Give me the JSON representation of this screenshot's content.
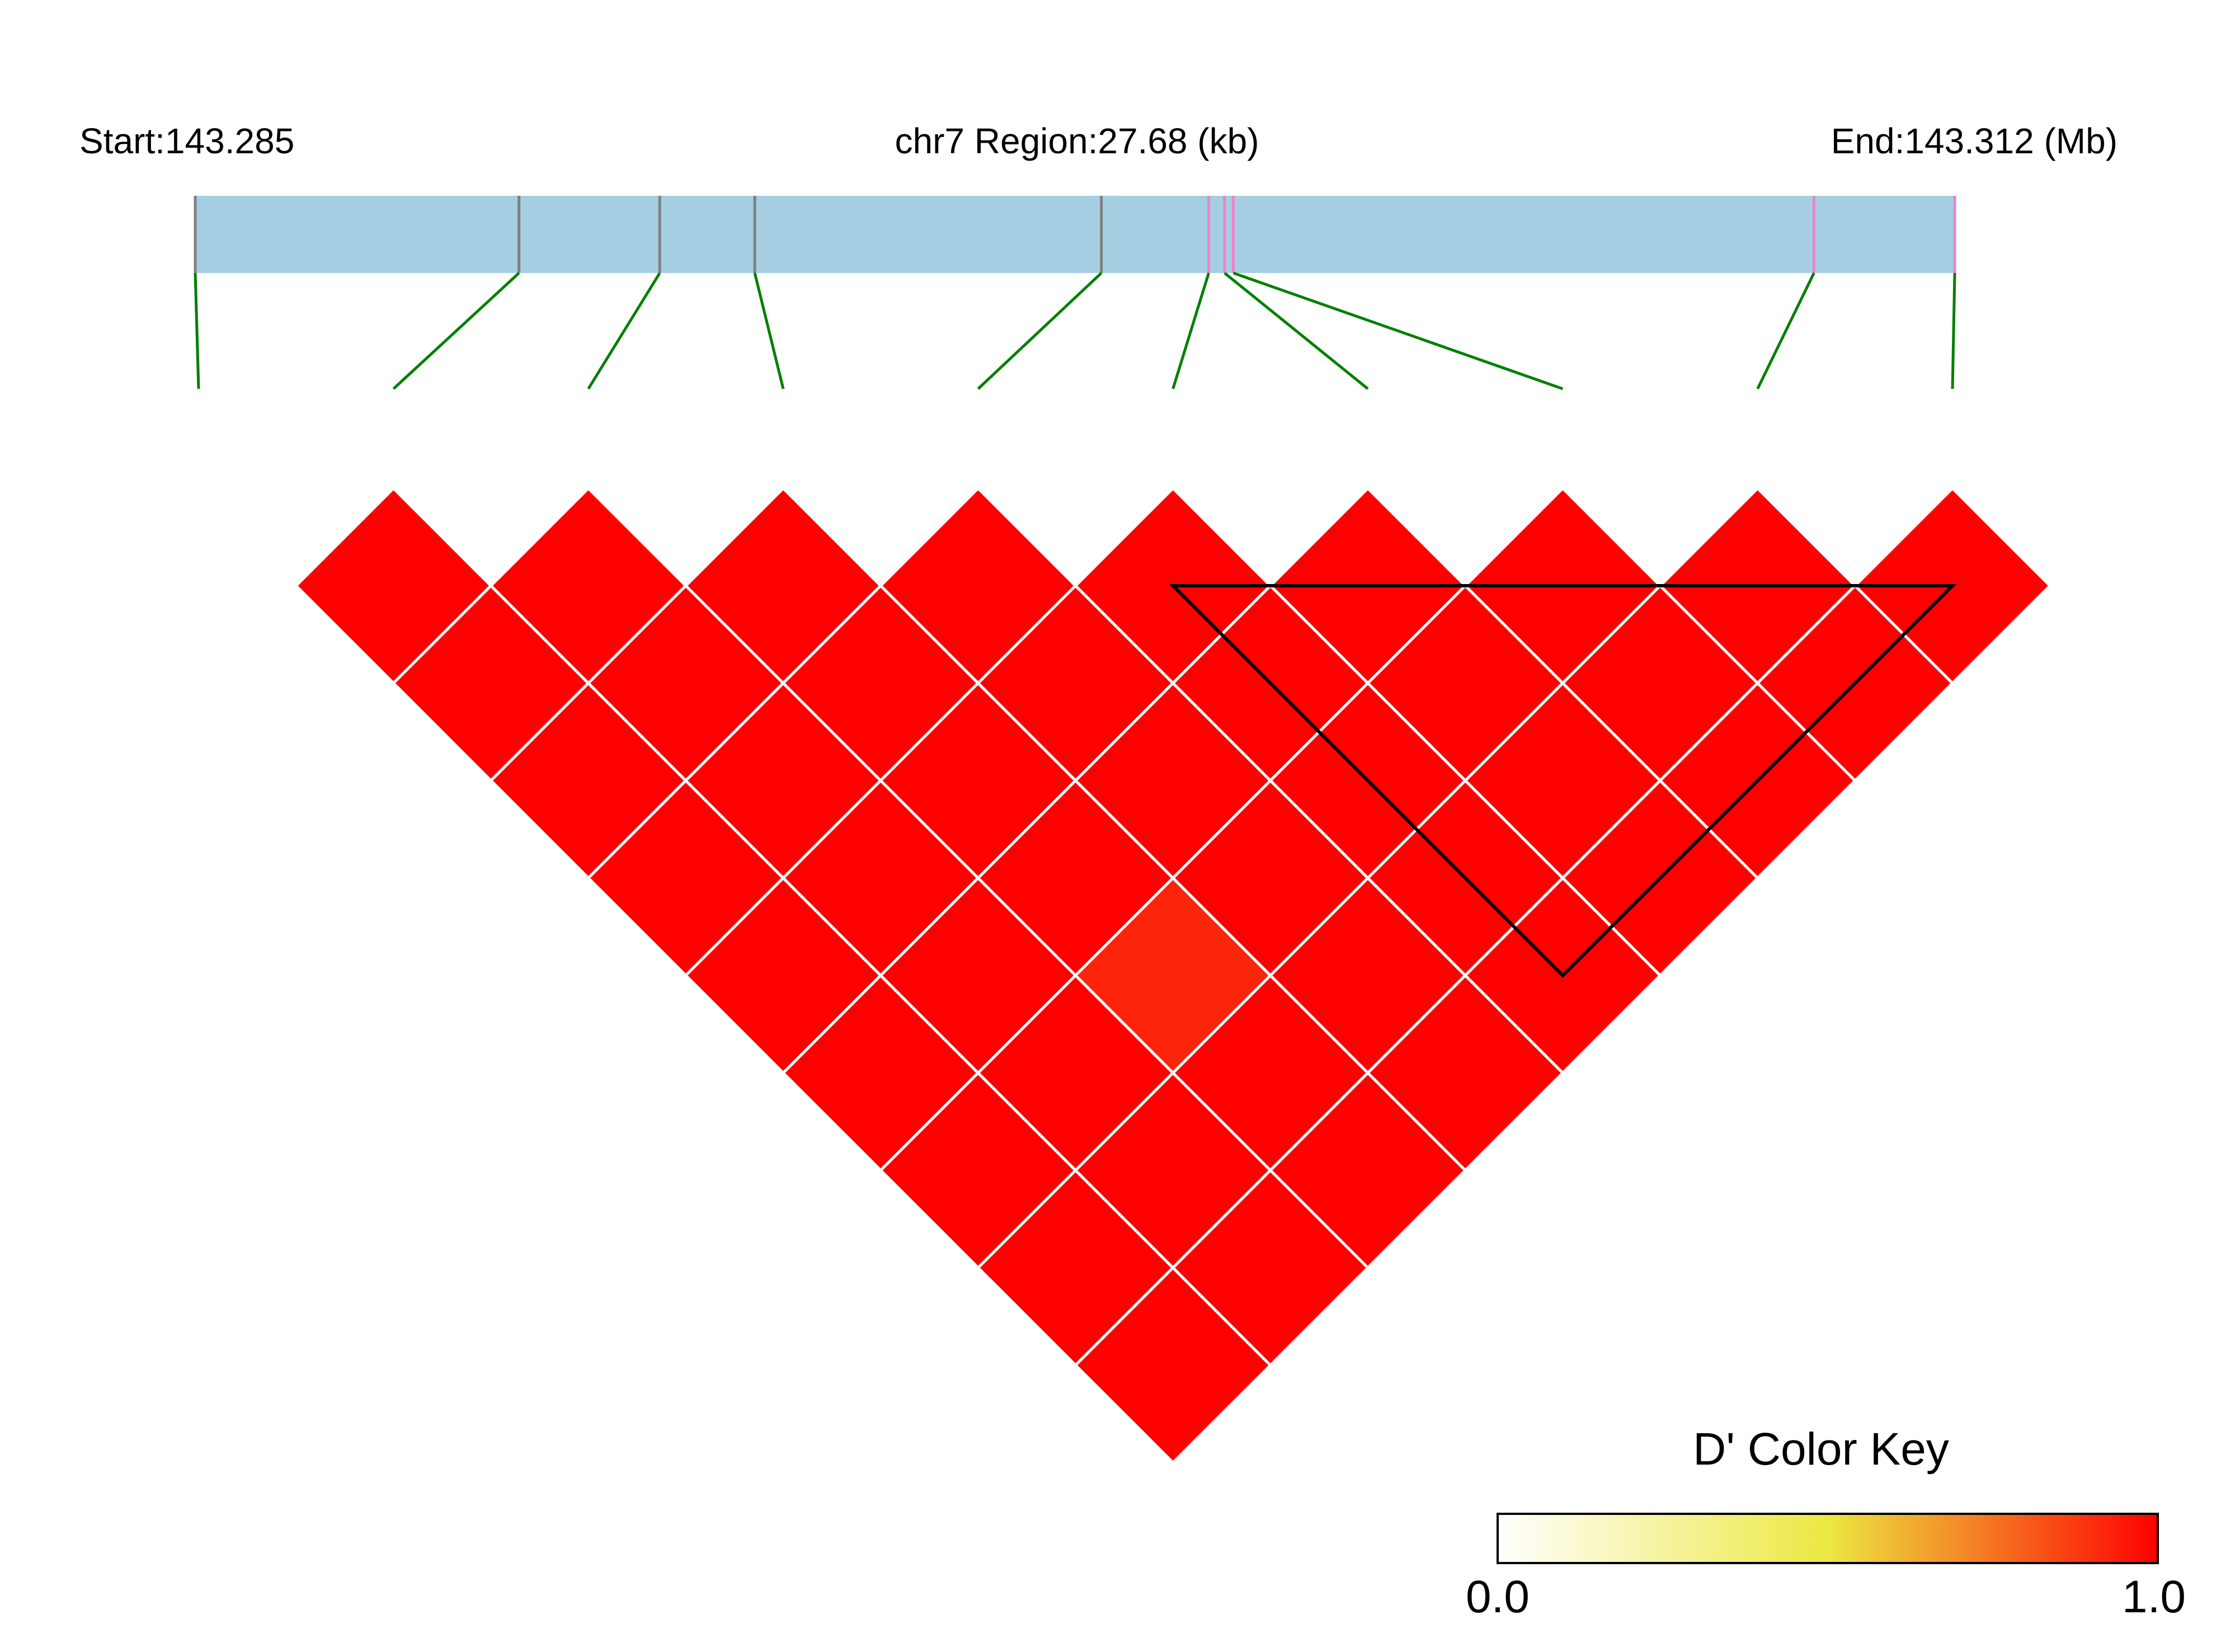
{
  "chart_data": {
    "type": "heatmap",
    "chromosome": "chr7",
    "header": {
      "start_label": "Start:143.285",
      "region_label": "chr7 Region:27.68 (kb)",
      "end_label": "End:143.312 (Mb)"
    },
    "region": {
      "start_mb": 143.285,
      "end_mb": 143.312,
      "length_kb": 27.68
    },
    "snp_count": 10,
    "snp_relative_positions": [
      0.0,
      0.184,
      0.264,
      0.318,
      0.515,
      0.576,
      0.585,
      0.59,
      0.92,
      1.0
    ],
    "snp_tick_colors": [
      "#808080",
      "#808080",
      "#808080",
      "#808080",
      "#808080",
      "#ee82c8",
      "#ee82c8",
      "#ee82c8",
      "#ee82c8",
      "#ee82c8"
    ],
    "ld_measure": "D'",
    "ld_matrix": [
      [
        null,
        1.0,
        1.0,
        1.0,
        1.0,
        1.0,
        1.0,
        1.0,
        1.0,
        1.0
      ],
      [
        null,
        null,
        1.0,
        1.0,
        1.0,
        1.0,
        1.0,
        1.0,
        1.0,
        1.0
      ],
      [
        null,
        null,
        null,
        1.0,
        1.0,
        1.0,
        1.0,
        0.92,
        1.0,
        1.0
      ],
      [
        null,
        null,
        null,
        null,
        1.0,
        1.0,
        1.0,
        1.0,
        1.0,
        1.0
      ],
      [
        null,
        null,
        null,
        null,
        null,
        1.0,
        1.0,
        1.0,
        1.0,
        1.0
      ],
      [
        null,
        null,
        null,
        null,
        null,
        null,
        1.0,
        1.0,
        1.0,
        1.0
      ],
      [
        null,
        null,
        null,
        null,
        null,
        null,
        null,
        1.0,
        1.0,
        1.0
      ],
      [
        null,
        null,
        null,
        null,
        null,
        null,
        null,
        null,
        1.0,
        1.0
      ],
      [
        null,
        null,
        null,
        null,
        null,
        null,
        null,
        null,
        null,
        1.0
      ]
    ],
    "ld_blocks": [
      {
        "first_snp": 6,
        "last_snp": 10
      }
    ],
    "color_key": {
      "title": "D' Color Key",
      "min_label": "0.0",
      "max_label": "1.0",
      "range": [
        0.0,
        1.0
      ],
      "colors": [
        "#ffffff",
        "#ece842",
        "#ff0000"
      ]
    },
    "colors": {
      "gene_bar": "#a6cee3",
      "connector": "#008000",
      "cell_border": "#ffffff",
      "block_outline": "#000000"
    }
  }
}
